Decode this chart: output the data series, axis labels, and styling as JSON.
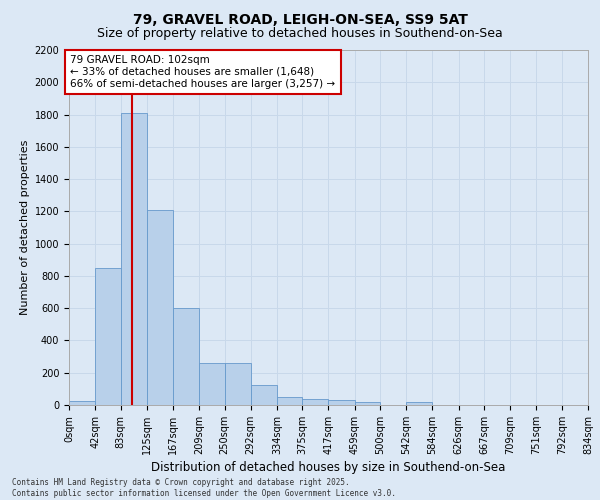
{
  "title1": "79, GRAVEL ROAD, LEIGH-ON-SEA, SS9 5AT",
  "title2": "Size of property relative to detached houses in Southend-on-Sea",
  "xlabel": "Distribution of detached houses by size in Southend-on-Sea",
  "ylabel": "Number of detached properties",
  "bar_values": [
    25,
    850,
    1810,
    1210,
    600,
    260,
    260,
    125,
    50,
    40,
    30,
    20,
    0,
    20,
    0,
    0,
    0,
    0,
    0,
    0
  ],
  "bin_edges": [
    0,
    42,
    83,
    125,
    167,
    209,
    250,
    292,
    334,
    375,
    417,
    459,
    500,
    542,
    584,
    626,
    667,
    709,
    751,
    792,
    834
  ],
  "bin_labels": [
    "0sqm",
    "42sqm",
    "83sqm",
    "125sqm",
    "167sqm",
    "209sqm",
    "250sqm",
    "292sqm",
    "334sqm",
    "375sqm",
    "417sqm",
    "459sqm",
    "500sqm",
    "542sqm",
    "584sqm",
    "626sqm",
    "667sqm",
    "709sqm",
    "751sqm",
    "792sqm",
    "834sqm"
  ],
  "bar_color": "#b8d0ea",
  "bar_edge_color": "#6699cc",
  "property_size": 102,
  "red_line_color": "#cc0000",
  "annotation_text": "79 GRAVEL ROAD: 102sqm\n← 33% of detached houses are smaller (1,648)\n66% of semi-detached houses are larger (3,257) →",
  "annotation_box_color": "#ffffff",
  "annotation_box_edge": "#cc0000",
  "ylim": [
    0,
    2200
  ],
  "yticks": [
    0,
    200,
    400,
    600,
    800,
    1000,
    1200,
    1400,
    1600,
    1800,
    2000,
    2200
  ],
  "grid_color": "#c8d8ea",
  "background_color": "#dce8f5",
  "footer_text": "Contains HM Land Registry data © Crown copyright and database right 2025.\nContains public sector information licensed under the Open Government Licence v3.0.",
  "title1_fontsize": 10,
  "title2_fontsize": 9,
  "xlabel_fontsize": 8.5,
  "ylabel_fontsize": 8,
  "tick_fontsize": 7,
  "annotation_fontsize": 7.5
}
